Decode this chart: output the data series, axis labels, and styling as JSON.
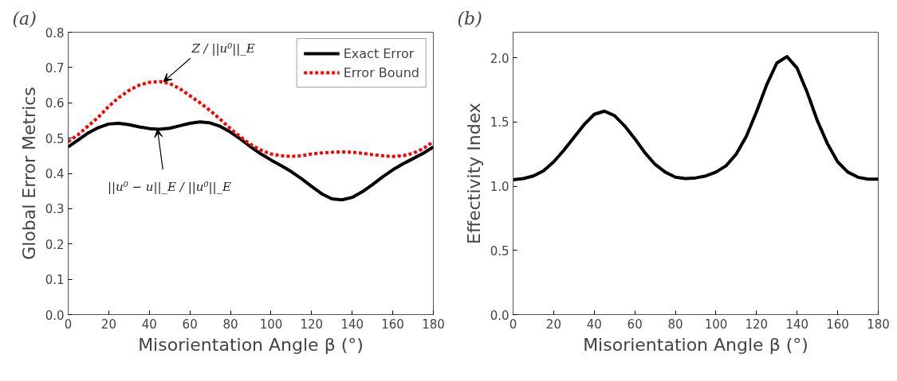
{
  "chart_data": [
    {
      "type": "line",
      "title": "(a)",
      "xlabel": "Misorientation Angle β (°)",
      "ylabel": "Global Error Metrics",
      "x": [
        0,
        5,
        10,
        15,
        20,
        25,
        30,
        35,
        40,
        45,
        50,
        55,
        60,
        65,
        70,
        75,
        80,
        85,
        90,
        95,
        100,
        105,
        110,
        115,
        120,
        125,
        130,
        135,
        140,
        145,
        150,
        155,
        160,
        165,
        170,
        175,
        180
      ],
      "series": [
        {
          "name": "Exact Error",
          "color": "#000000",
          "line_style": "solid",
          "values": [
            0.475,
            0.495,
            0.515,
            0.53,
            0.54,
            0.542,
            0.538,
            0.532,
            0.527,
            0.525,
            0.528,
            0.535,
            0.542,
            0.546,
            0.543,
            0.533,
            0.517,
            0.497,
            0.475,
            0.455,
            0.438,
            0.422,
            0.405,
            0.385,
            0.363,
            0.342,
            0.328,
            0.325,
            0.332,
            0.348,
            0.368,
            0.39,
            0.41,
            0.427,
            0.442,
            0.457,
            0.475
          ]
        },
        {
          "name": "Error Bound",
          "color": "#ff0000",
          "line_style": "dotted",
          "values": [
            0.49,
            0.51,
            0.535,
            0.56,
            0.59,
            0.615,
            0.635,
            0.65,
            0.658,
            0.66,
            0.655,
            0.64,
            0.62,
            0.6,
            0.578,
            0.553,
            0.527,
            0.503,
            0.482,
            0.466,
            0.455,
            0.45,
            0.448,
            0.45,
            0.455,
            0.458,
            0.46,
            0.461,
            0.46,
            0.457,
            0.453,
            0.45,
            0.448,
            0.45,
            0.457,
            0.47,
            0.49
          ]
        }
      ],
      "xlim": [
        0,
        180
      ],
      "xticks": [
        0,
        20,
        40,
        60,
        80,
        100,
        120,
        140,
        160,
        180
      ],
      "ylim": [
        0.0,
        0.8
      ],
      "yticks": [
        {
          "value": 0,
          "label": "0.0"
        },
        0.1,
        0.2,
        0.3,
        0.4,
        0.5,
        0.6,
        0.7,
        0.8
      ],
      "annotations": [
        {
          "text": "Z / ||u⁰||_E",
          "x": 47,
          "y": 0.66
        },
        {
          "text": "||u⁰ − u||_E / ||u⁰||_E",
          "x": 44,
          "y": 0.525
        }
      ],
      "legend": "top right",
      "grid": false
    },
    {
      "type": "line",
      "title": "(b)",
      "xlabel": "Misorientation Angle β (°)",
      "ylabel": "Effectivity Index",
      "x": [
        0,
        5,
        10,
        15,
        20,
        25,
        30,
        35,
        40,
        45,
        50,
        55,
        60,
        65,
        70,
        75,
        80,
        85,
        90,
        95,
        100,
        105,
        110,
        115,
        120,
        125,
        130,
        135,
        140,
        145,
        150,
        155,
        160,
        165,
        170,
        175,
        180
      ],
      "series": [
        {
          "color": "#000000",
          "line_style": "solid",
          "values": [
            1.05,
            1.06,
            1.08,
            1.12,
            1.19,
            1.28,
            1.38,
            1.48,
            1.56,
            1.585,
            1.55,
            1.47,
            1.37,
            1.26,
            1.17,
            1.11,
            1.07,
            1.06,
            1.065,
            1.08,
            1.11,
            1.16,
            1.25,
            1.39,
            1.58,
            1.79,
            1.96,
            2.01,
            1.92,
            1.73,
            1.51,
            1.33,
            1.19,
            1.11,
            1.07,
            1.055,
            1.055
          ]
        }
      ],
      "xlim": [
        0,
        180
      ],
      "xticks": [
        0,
        20,
        40,
        60,
        80,
        100,
        120,
        140,
        160,
        180
      ],
      "ylim": [
        0.0,
        2.2
      ],
      "yticks": [
        {
          "value": 0,
          "label": "0.0"
        },
        0.5,
        {
          "value": 1,
          "label": "1.0"
        },
        1.5,
        {
          "value": 2,
          "label": "2.0"
        }
      ],
      "legend": false,
      "grid": false
    }
  ]
}
